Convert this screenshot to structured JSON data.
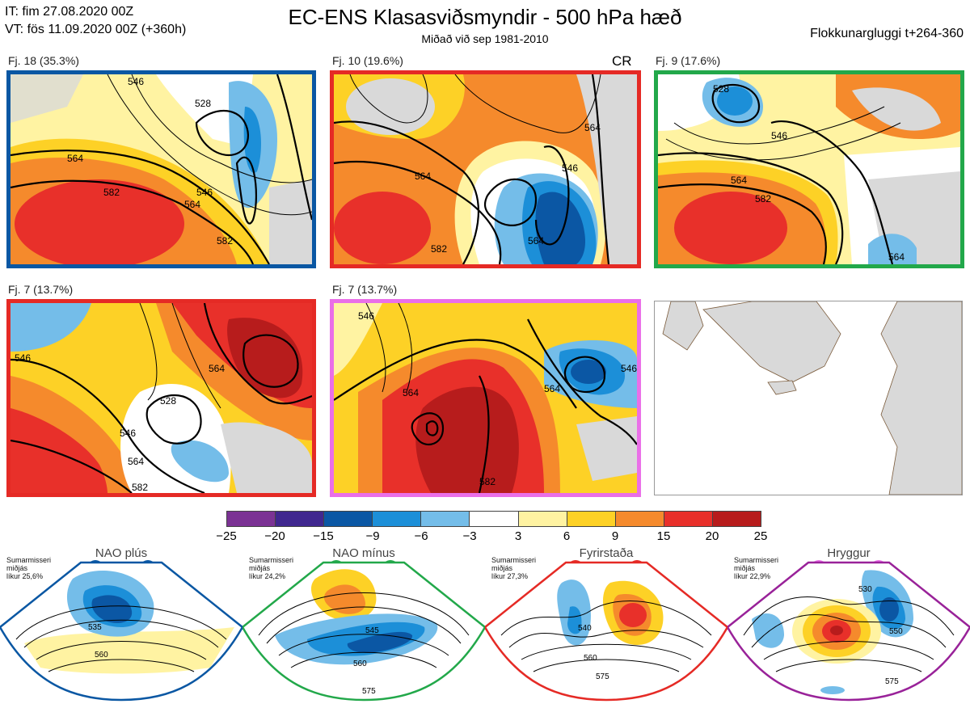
{
  "header": {
    "it_line": "IT: fim 27.08.2020 00Z",
    "vt_line": "VT: fös 11.09.2020 00Z  (+360h)",
    "title": "EC-ENS Klasasviðsmyndir - 500 hPa hæð",
    "subtitle": "Miðað við sep 1981-2010",
    "window": "Flokkunargluggi t+264-360"
  },
  "panels": [
    {
      "label": "Fj. 18 (35.3%)",
      "border": "#0a57a3",
      "contours": [
        "546",
        "528",
        "564",
        "582",
        "546",
        "564",
        "582"
      ]
    },
    {
      "label": "Fj. 10 (19.6%)",
      "border": "#e52a25",
      "tag": "CR",
      "contours": [
        "564",
        "582",
        "564",
        "546",
        "564"
      ]
    },
    {
      "label": "Fj. 9 (17.6%)",
      "border": "#22a84a",
      "contours": [
        "528",
        "546",
        "564",
        "582",
        "564"
      ]
    },
    {
      "label": "Fj. 7 (13.7%)",
      "border": "#e52a25",
      "contours": [
        "546",
        "528",
        "546",
        "564",
        "582",
        "564"
      ]
    },
    {
      "label": "Fj. 7 (13.7%)",
      "border": "#ea6fe8",
      "contours": [
        "546",
        "564",
        "582",
        "564",
        "546"
      ]
    }
  ],
  "colorbar": {
    "ticks": [
      "−25",
      "−20",
      "−15",
      "−9",
      "−6",
      "−3",
      "3",
      "6",
      "9",
      "15",
      "20",
      "25"
    ],
    "colors": [
      "#7b3294",
      "#40278f",
      "#0b57a4",
      "#1c8fd8",
      "#74bde9",
      "#ffffff",
      "#fff3a2",
      "#fdd126",
      "#f58a2c",
      "#e8302a",
      "#b71c1c"
    ]
  },
  "regimes": [
    {
      "name": "NAO plús",
      "info": [
        "Sumarmisseri",
        "miðjás",
        "líkur 25,6%"
      ],
      "color": "#0a57a3",
      "contours": [
        "535",
        "560"
      ]
    },
    {
      "name": "NAO mínus",
      "info": [
        "Sumarmisseri",
        "miðjás",
        "líkur 24,2%"
      ],
      "color": "#22a84a",
      "contours": [
        "545",
        "560",
        "575"
      ]
    },
    {
      "name": "Fyrirstaða",
      "info": [
        "Sumarmisseri",
        "miðjás",
        "líkur 27,3%"
      ],
      "color": "#e52a25",
      "contours": [
        "540",
        "560",
        "575"
      ]
    },
    {
      "name": "Hryggur",
      "info": [
        "Sumarmisseri",
        "miðjás",
        "líkur 22,9%"
      ],
      "color": "#ea6fe8",
      "contours": [
        "530",
        "550",
        "575"
      ]
    }
  ]
}
